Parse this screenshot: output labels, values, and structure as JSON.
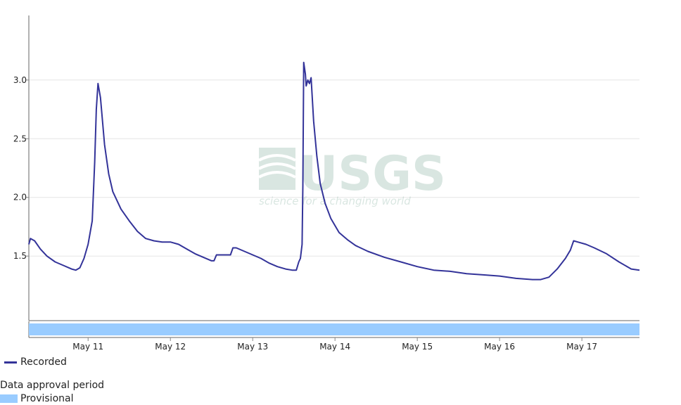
{
  "chart_data": {
    "type": "line",
    "title": "",
    "xlabel": "",
    "ylabel": "",
    "x_start": "2024-05-10",
    "x_end": "2024-05-17",
    "xlim_days": [
      10.28,
      17.7
    ],
    "ylim": [
      0.95,
      3.55
    ],
    "categories": [
      "May 11",
      "May 12",
      "May 13",
      "May 14",
      "May 15",
      "May 16",
      "May 17"
    ],
    "category_positions": [
      11,
      12,
      13,
      14,
      15,
      16,
      17
    ],
    "y_ticks": [
      {
        "value": 1.5,
        "label": "1.5"
      },
      {
        "value": 2.0,
        "label": "2.0"
      },
      {
        "value": 2.5,
        "label": "2.5"
      },
      {
        "value": 3.0,
        "label": "3.0"
      }
    ],
    "grid": true,
    "series": [
      {
        "name": "Recorded",
        "color": "#333399",
        "points": [
          [
            10.28,
            1.6
          ],
          [
            10.3,
            1.65
          ],
          [
            10.35,
            1.63
          ],
          [
            10.42,
            1.56
          ],
          [
            10.5,
            1.5
          ],
          [
            10.6,
            1.45
          ],
          [
            10.7,
            1.42
          ],
          [
            10.8,
            1.39
          ],
          [
            10.85,
            1.38
          ],
          [
            10.9,
            1.4
          ],
          [
            10.95,
            1.48
          ],
          [
            11.0,
            1.6
          ],
          [
            11.05,
            1.8
          ],
          [
            11.08,
            2.3
          ],
          [
            11.1,
            2.75
          ],
          [
            11.12,
            2.97
          ],
          [
            11.15,
            2.85
          ],
          [
            11.2,
            2.45
          ],
          [
            11.25,
            2.2
          ],
          [
            11.3,
            2.05
          ],
          [
            11.4,
            1.9
          ],
          [
            11.5,
            1.8
          ],
          [
            11.6,
            1.71
          ],
          [
            11.7,
            1.65
          ],
          [
            11.8,
            1.63
          ],
          [
            11.9,
            1.62
          ],
          [
            12.0,
            1.62
          ],
          [
            12.1,
            1.6
          ],
          [
            12.2,
            1.56
          ],
          [
            12.3,
            1.52
          ],
          [
            12.4,
            1.49
          ],
          [
            12.5,
            1.46
          ],
          [
            12.53,
            1.46
          ],
          [
            12.56,
            1.51
          ],
          [
            12.7,
            1.51
          ],
          [
            12.73,
            1.51
          ],
          [
            12.76,
            1.57
          ],
          [
            12.8,
            1.57
          ],
          [
            12.9,
            1.54
          ],
          [
            13.0,
            1.51
          ],
          [
            13.1,
            1.48
          ],
          [
            13.2,
            1.44
          ],
          [
            13.3,
            1.41
          ],
          [
            13.4,
            1.39
          ],
          [
            13.48,
            1.38
          ],
          [
            13.53,
            1.38
          ],
          [
            13.56,
            1.45
          ],
          [
            13.58,
            1.48
          ],
          [
            13.6,
            1.6
          ],
          [
            13.61,
            2.1
          ],
          [
            13.62,
            3.15
          ],
          [
            13.64,
            3.05
          ],
          [
            13.65,
            2.95
          ],
          [
            13.67,
            3.0
          ],
          [
            13.69,
            2.97
          ],
          [
            13.71,
            3.02
          ],
          [
            13.74,
            2.65
          ],
          [
            13.78,
            2.35
          ],
          [
            13.82,
            2.12
          ],
          [
            13.88,
            1.95
          ],
          [
            13.95,
            1.82
          ],
          [
            14.05,
            1.7
          ],
          [
            14.15,
            1.64
          ],
          [
            14.25,
            1.59
          ],
          [
            14.4,
            1.54
          ],
          [
            14.6,
            1.49
          ],
          [
            14.8,
            1.45
          ],
          [
            15.0,
            1.41
          ],
          [
            15.2,
            1.38
          ],
          [
            15.4,
            1.37
          ],
          [
            15.6,
            1.35
          ],
          [
            15.8,
            1.34
          ],
          [
            16.0,
            1.33
          ],
          [
            16.2,
            1.31
          ],
          [
            16.4,
            1.3
          ],
          [
            16.5,
            1.3
          ],
          [
            16.6,
            1.32
          ],
          [
            16.7,
            1.39
          ],
          [
            16.8,
            1.48
          ],
          [
            16.86,
            1.55
          ],
          [
            16.9,
            1.63
          ],
          [
            16.95,
            1.62
          ],
          [
            17.05,
            1.6
          ],
          [
            17.15,
            1.57
          ],
          [
            17.3,
            1.52
          ],
          [
            17.45,
            1.45
          ],
          [
            17.6,
            1.39
          ],
          [
            17.7,
            1.38
          ]
        ]
      }
    ],
    "approval_period": {
      "label": "Provisional",
      "color": "#99ccff"
    }
  },
  "legend": {
    "recorded_label": "Recorded",
    "approval_title": "Data approval period",
    "provisional_label": "Provisional",
    "line_color": "#333399",
    "provisional_color": "#99ccff"
  },
  "watermark": {
    "name": "USGS",
    "tagline": "science for a changing world"
  }
}
